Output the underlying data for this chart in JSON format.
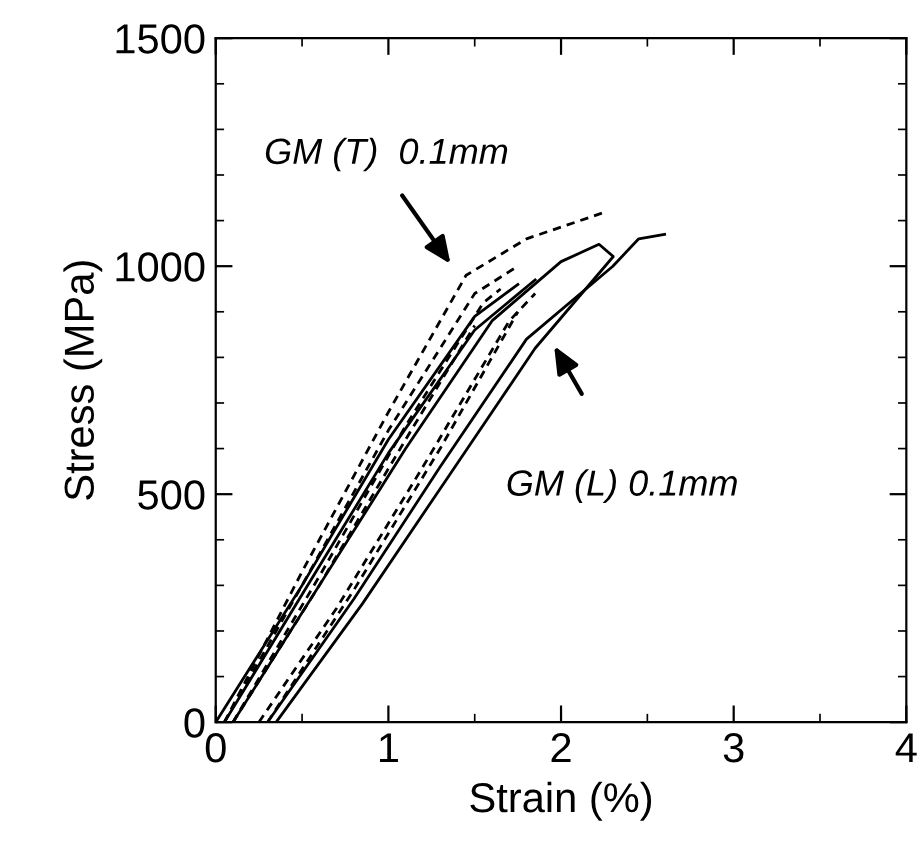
{
  "chart_data": {
    "type": "line",
    "xlabel": "Strain (%)",
    "ylabel": "Stress (MPa)",
    "xlim": [
      0,
      4
    ],
    "ylim": [
      0,
      1500
    ],
    "xticks": [
      0,
      1,
      2,
      3,
      4
    ],
    "yticks": [
      0,
      500,
      1000,
      1500
    ],
    "grid": false,
    "marker": "none",
    "series": [
      {
        "color": "#000000",
        "line_style": "dashed",
        "x": [
          0.05,
          0.5,
          1.0,
          1.45,
          1.8,
          2.25
        ],
        "values": [
          0,
          330,
          680,
          980,
          1060,
          1118
        ]
      },
      {
        "color": "#000000",
        "line_style": "dashed",
        "x": [
          0.05,
          0.5,
          1.0,
          1.5,
          1.75
        ],
        "values": [
          0,
          300,
          640,
          940,
          1000
        ]
      },
      {
        "color": "#000000",
        "line_style": "dashed",
        "x": [
          0.1,
          0.6,
          1.1,
          1.55,
          1.65
        ],
        "values": [
          0,
          320,
          650,
          920,
          950
        ]
      },
      {
        "color": "#000000",
        "line_style": "dashed",
        "x": [
          0.1,
          0.6,
          1.1,
          1.5
        ],
        "values": [
          0,
          300,
          620,
          870
        ]
      },
      {
        "color": "#000000",
        "line_style": "dashed",
        "x": [
          0.25,
          0.7,
          1.2,
          1.7,
          1.85
        ],
        "values": [
          0,
          250,
          560,
          880,
          940
        ]
      },
      {
        "color": "#000000",
        "line_style": "dashed",
        "x": [
          0.3,
          0.8,
          1.3,
          1.75
        ],
        "values": [
          0,
          290,
          600,
          900
        ]
      },
      {
        "color": "#000000",
        "line_style": "solid",
        "x": [
          0.0,
          0.5,
          1.0,
          1.5,
          1.75
        ],
        "values": [
          0,
          300,
          620,
          890,
          960
        ]
      },
      {
        "color": "#000000",
        "line_style": "solid",
        "x": [
          0.05,
          0.5,
          1.0,
          1.5,
          1.85
        ],
        "values": [
          0,
          280,
          590,
          860,
          970
        ]
      },
      {
        "color": "#000000",
        "line_style": "solid",
        "x": [
          0.1,
          0.6,
          1.1,
          1.6,
          2.0,
          2.22,
          2.3
        ],
        "values": [
          0,
          300,
          600,
          880,
          1010,
          1048,
          1022
        ]
      },
      {
        "color": "#000000",
        "line_style": "solid",
        "x": [
          0.3,
          0.8,
          1.3,
          1.8,
          2.3,
          2.45,
          2.6
        ],
        "values": [
          0,
          270,
          560,
          840,
          1000,
          1060,
          1070
        ]
      },
      {
        "color": "#000000",
        "line_style": "solid",
        "x": [
          0.35,
          0.85,
          1.35,
          1.85,
          2.3
        ],
        "values": [
          0,
          260,
          540,
          820,
          1020
        ]
      }
    ],
    "annotations": [
      "GM (T)  0.1mm",
      "GM (L) 0.1mm"
    ]
  }
}
